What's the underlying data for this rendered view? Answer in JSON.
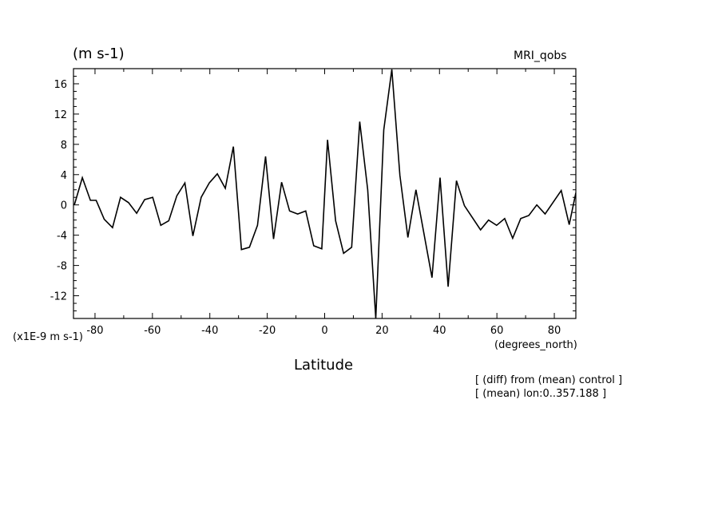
{
  "header": {
    "units": "(m s-1)",
    "model": "MRI_qobs"
  },
  "axes": {
    "y_scale_note": "(x1E-9 m s-1)",
    "x_unit": "(degrees_north)",
    "x_title": "Latitude"
  },
  "notes": [
    "[ (diff) from (mean) control ]",
    "[ (mean) lon:0..357.188 ]"
  ],
  "chart_data": {
    "type": "line",
    "xlabel": "Latitude",
    "ylabel": "(m s-1)",
    "xlim": [
      -87.5,
      87.5
    ],
    "ylim": [
      -15,
      18
    ],
    "xticks": [
      -80,
      -60,
      -40,
      -20,
      0,
      20,
      40,
      60,
      80
    ],
    "yticks": [
      -12,
      -8,
      -4,
      0,
      4,
      8,
      12,
      16
    ],
    "tick_labels_x": [
      "-80",
      "-60",
      "-40",
      "-20",
      "0",
      "20",
      "40",
      "60",
      "80"
    ],
    "tick_labels_y": [
      "-12",
      "-8",
      "-4",
      "0",
      "4",
      "8",
      "12",
      "16"
    ],
    "grid": false,
    "series": [
      {
        "color": "#000000",
        "x": [
          -87.2,
          -84.4,
          -81.6,
          -79.6,
          -76.8,
          -73.9,
          -71.1,
          -68.3,
          -65.5,
          -62.7,
          -59.9,
          -57.1,
          -54.3,
          -51.5,
          -48.7,
          -45.9,
          -43.0,
          -40.2,
          -37.4,
          -34.6,
          -31.8,
          -29.0,
          -26.2,
          -23.4,
          -20.6,
          -17.8,
          -15.0,
          -12.2,
          -9.4,
          -6.6,
          -3.8,
          -1.0,
          1.0,
          3.8,
          6.6,
          9.4,
          12.2,
          15.0,
          17.8,
          20.6,
          23.4,
          26.2,
          29.0,
          31.8,
          37.4,
          40.2,
          43.0,
          45.9,
          48.7,
          54.3,
          57.1,
          59.9,
          62.7,
          65.5,
          68.3,
          71.1,
          73.9,
          76.8,
          82.4,
          85.2,
          87.5
        ],
        "y": [
          0.0,
          3.6,
          0.6,
          0.6,
          -1.9,
          -3.0,
          1.0,
          0.3,
          -1.1,
          0.7,
          1.0,
          -2.7,
          -2.1,
          1.2,
          2.9,
          -4.1,
          1.0,
          2.9,
          4.1,
          2.2,
          7.7,
          -5.9,
          -5.6,
          -2.7,
          6.4,
          -4.5,
          3.0,
          -0.8,
          -1.2,
          -0.8,
          -5.4,
          -5.8,
          8.6,
          -2.1,
          -6.4,
          -5.6,
          11.0,
          2.0,
          -15.0,
          9.9,
          17.9,
          3.9,
          -4.3,
          2.0,
          -9.6,
          3.6,
          -10.8,
          3.2,
          -0.1,
          -3.3,
          -2.0,
          -2.7,
          -1.8,
          -4.4,
          -1.8,
          -1.4,
          0.0,
          -1.2,
          1.9,
          -2.6,
          1.6
        ]
      }
    ]
  }
}
